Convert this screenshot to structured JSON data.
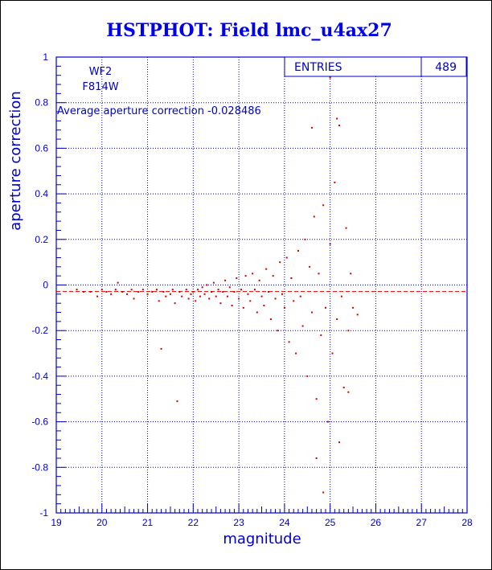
{
  "chart_data": {
    "type": "scatter",
    "title": "HSTPHOT: Field lmc_u4ax27",
    "xlabel": "magnitude",
    "ylabel": "aperture correction",
    "xlim": [
      19,
      28
    ],
    "ylim": [
      -1,
      1
    ],
    "x_ticks": [
      "19",
      "20",
      "21",
      "22",
      "23",
      "24",
      "25",
      "26",
      "27",
      "28"
    ],
    "y_ticks": [
      "1",
      "0.8",
      "0.6",
      "0.4",
      "0.2",
      "0",
      "-0.2",
      "-0.4",
      "-0.6",
      "-0.8",
      "-1"
    ],
    "grid": true,
    "annotations": {
      "chip": "WF2",
      "filter": "F814W",
      "average_label": "Average aperture correction -0.028486"
    },
    "stats_box": {
      "entries_label": "ENTRIES",
      "entries_value": "489"
    },
    "reference_line": {
      "y": -0.028486,
      "style": "dashed"
    },
    "series": [
      {
        "points": [
          [
            19.45,
            -0.02
          ],
          [
            19.6,
            -0.03
          ],
          [
            19.75,
            -0.03
          ],
          [
            19.9,
            -0.05
          ],
          [
            20.0,
            -0.02
          ],
          [
            20.1,
            -0.03
          ],
          [
            20.2,
            -0.04
          ],
          [
            20.3,
            -0.02
          ],
          [
            20.35,
            0.01
          ],
          [
            20.45,
            -0.03
          ],
          [
            20.55,
            -0.04
          ],
          [
            20.65,
            -0.02
          ],
          [
            20.7,
            -0.06
          ],
          [
            20.8,
            -0.03
          ],
          [
            20.9,
            -0.02
          ],
          [
            21.0,
            -0.04
          ],
          [
            21.1,
            -0.03
          ],
          [
            21.2,
            -0.02
          ],
          [
            21.25,
            -0.07
          ],
          [
            21.35,
            -0.03
          ],
          [
            21.4,
            -0.05
          ],
          [
            21.5,
            -0.04
          ],
          [
            21.55,
            -0.02
          ],
          [
            21.6,
            -0.08
          ],
          [
            21.7,
            -0.03
          ],
          [
            21.75,
            -0.05
          ],
          [
            21.85,
            -0.02
          ],
          [
            21.9,
            -0.06
          ],
          [
            21.95,
            -0.04
          ],
          [
            22.0,
            -0.03
          ],
          [
            22.05,
            -0.07
          ],
          [
            22.1,
            -0.02
          ],
          [
            22.15,
            -0.05
          ],
          [
            22.2,
            -0.01
          ],
          [
            22.25,
            -0.04
          ],
          [
            22.3,
            0.0
          ],
          [
            22.35,
            -0.06
          ],
          [
            22.4,
            -0.03
          ],
          [
            22.45,
            0.01
          ],
          [
            22.5,
            -0.05
          ],
          [
            22.55,
            -0.02
          ],
          [
            22.6,
            -0.08
          ],
          [
            22.65,
            -0.03
          ],
          [
            22.7,
            0.02
          ],
          [
            22.75,
            -0.05
          ],
          [
            22.8,
            -0.01
          ],
          [
            22.85,
            -0.09
          ],
          [
            22.9,
            -0.03
          ],
          [
            22.95,
            0.03
          ],
          [
            23.0,
            -0.06
          ],
          [
            23.05,
            -0.02
          ],
          [
            23.1,
            -0.1
          ],
          [
            23.15,
            0.04
          ],
          [
            23.2,
            -0.04
          ],
          [
            23.25,
            -0.07
          ],
          [
            23.3,
            0.05
          ],
          [
            23.35,
            -0.02
          ],
          [
            23.4,
            -0.12
          ],
          [
            23.45,
            0.02
          ],
          [
            23.5,
            -0.05
          ],
          [
            23.55,
            -0.09
          ],
          [
            23.6,
            0.07
          ],
          [
            23.65,
            -0.03
          ],
          [
            23.7,
            -0.15
          ],
          [
            23.75,
            0.04
          ],
          [
            23.8,
            -0.06
          ],
          [
            23.85,
            -0.2
          ],
          [
            23.9,
            0.1
          ],
          [
            23.95,
            -0.04
          ],
          [
            24.0,
            -0.1
          ],
          [
            24.05,
            0.12
          ],
          [
            24.1,
            -0.25
          ],
          [
            24.15,
            0.03
          ],
          [
            24.2,
            -0.07
          ],
          [
            24.25,
            -0.3
          ],
          [
            24.3,
            0.15
          ],
          [
            24.35,
            -0.05
          ],
          [
            24.4,
            -0.18
          ],
          [
            24.45,
            0.2
          ],
          [
            24.5,
            -0.4
          ],
          [
            24.55,
            0.08
          ],
          [
            24.6,
            -0.12
          ],
          [
            24.65,
            0.3
          ],
          [
            24.7,
            -0.5
          ],
          [
            24.75,
            0.05
          ],
          [
            24.8,
            -0.22
          ],
          [
            24.85,
            0.35
          ],
          [
            24.9,
            -0.1
          ],
          [
            24.95,
            -0.6
          ],
          [
            25.0,
            0.18
          ],
          [
            25.05,
            -0.3
          ],
          [
            25.1,
            0.45
          ],
          [
            25.15,
            -0.15
          ],
          [
            25.2,
            0.7
          ],
          [
            25.25,
            -0.05
          ],
          [
            25.3,
            -0.45
          ],
          [
            25.35,
            0.25
          ],
          [
            25.4,
            -0.2
          ],
          [
            25.45,
            0.05
          ],
          [
            25.5,
            -0.1
          ],
          [
            25.6,
            -0.13
          ],
          [
            24.6,
            0.69
          ],
          [
            25.15,
            0.73
          ],
          [
            25.0,
            0.91
          ],
          [
            25.2,
            -0.69
          ],
          [
            24.7,
            -0.76
          ],
          [
            24.85,
            -0.91
          ],
          [
            21.65,
            -0.51
          ],
          [
            21.3,
            -0.28
          ],
          [
            25.4,
            -0.47
          ]
        ]
      }
    ]
  },
  "colors": {
    "axis": "#0000cc",
    "points": "#cc0000",
    "title": "#0000ee"
  }
}
